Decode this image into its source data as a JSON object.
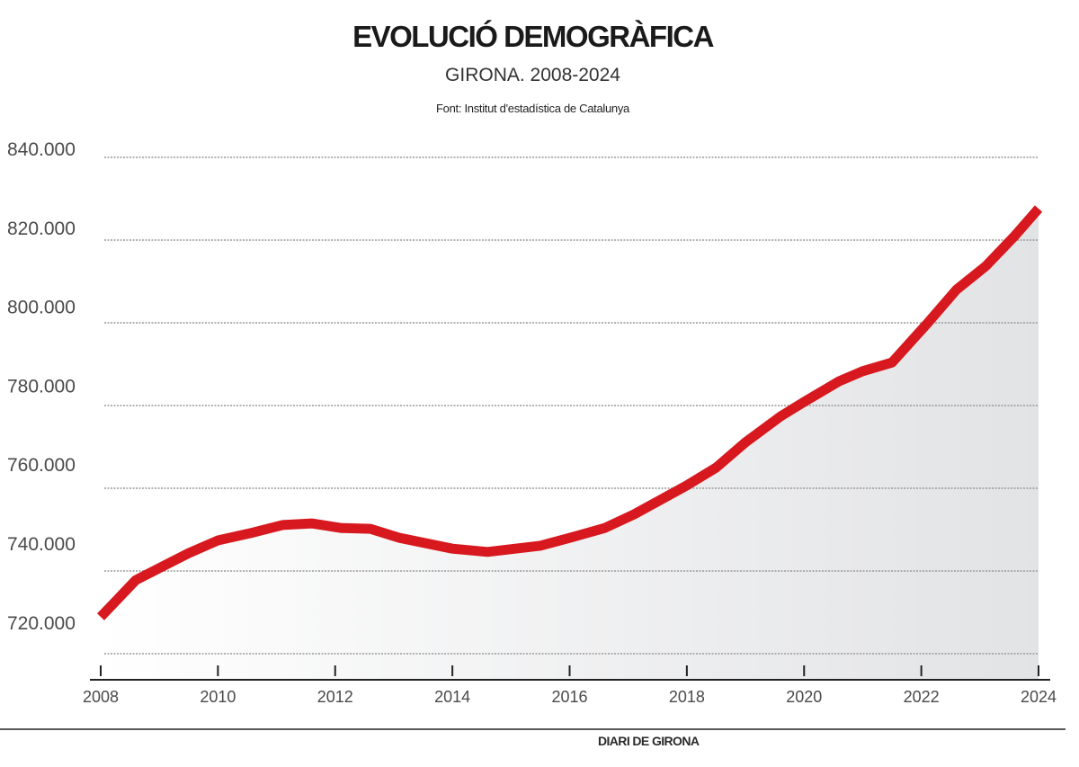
{
  "header": {
    "title": "EVOLUCIÓ DEMOGRÀFICA",
    "subtitle": "GIRONA. 2008-2024",
    "source": "Font: Institut d'estadística de Catalunya"
  },
  "footer": {
    "credit": "DIARI DE GIRONA"
  },
  "colors": {
    "line": "#d7191f",
    "area": "#e2e3e5",
    "grid": "#999999"
  },
  "chart_data": {
    "type": "area",
    "title": "EVOLUCIÓ DEMOGRÀFICA",
    "subtitle": "GIRONA. 2008-2024",
    "xlabel": "",
    "ylabel": "",
    "xlim": [
      2008,
      2024
    ],
    "ylim": [
      720000,
      840000
    ],
    "grid": true,
    "legend": "none",
    "x_ticks": [
      "2008",
      "2010",
      "2012",
      "2014",
      "2016",
      "2018",
      "2020",
      "2022",
      "2024"
    ],
    "y_ticks": [
      "720.000",
      "740.000",
      "760.000",
      "780.000",
      "800.000",
      "820.000",
      "840.000"
    ],
    "y_tick_values": [
      720000,
      740000,
      760000,
      780000,
      800000,
      820000,
      840000
    ],
    "x": [
      2008,
      2008.6,
      2009.5,
      2010,
      2010.6,
      2011.1,
      2011.6,
      2012.1,
      2012.6,
      2013.1,
      2014,
      2014.6,
      2015.5,
      2016,
      2016.6,
      2017.1,
      2018,
      2018.5,
      2019,
      2019.6,
      2020,
      2020.6,
      2021,
      2021.5,
      2022.1,
      2022.6,
      2023.1,
      2023.6,
      2024
    ],
    "y": [
      728900,
      737800,
      744300,
      747400,
      749300,
      751100,
      751500,
      750400,
      750200,
      748000,
      745400,
      744600,
      746100,
      748000,
      750400,
      753700,
      760700,
      765000,
      771100,
      777400,
      780900,
      785900,
      788300,
      790400,
      799800,
      808000,
      813700,
      821100,
      827600
    ]
  }
}
